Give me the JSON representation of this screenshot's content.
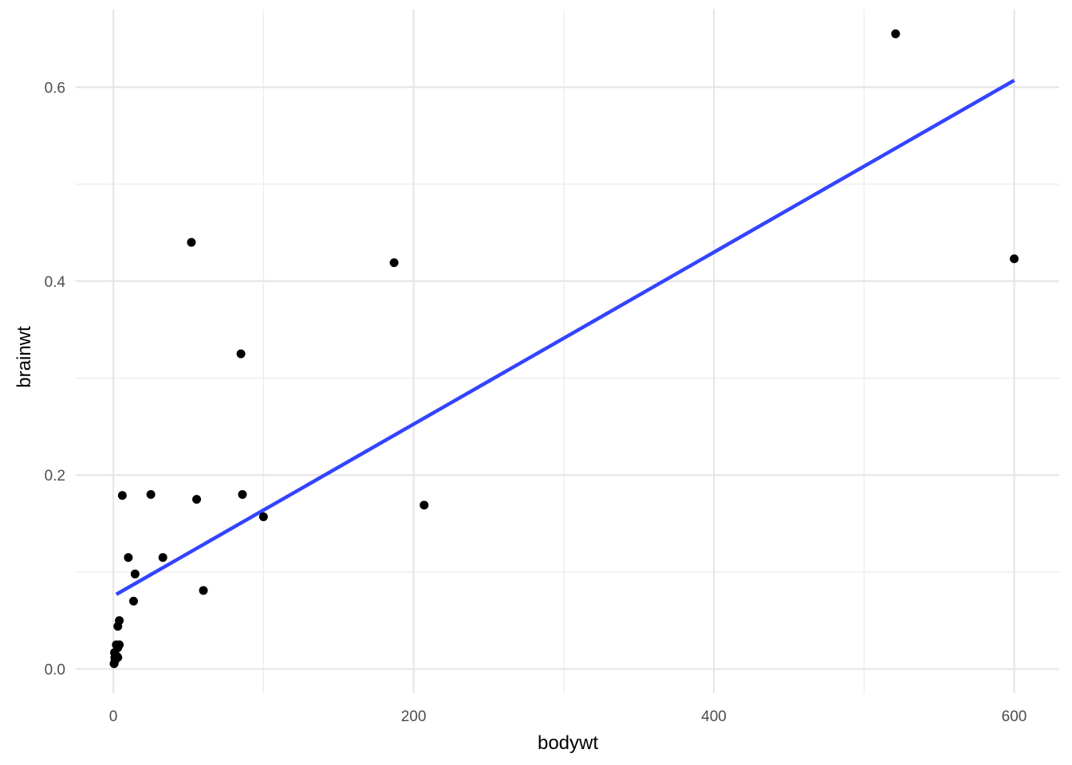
{
  "chart_data": {
    "type": "scatter",
    "title": "",
    "xlabel": "bodywt",
    "ylabel": "brainwt",
    "xlim": [
      -25,
      630
    ],
    "ylim": [
      -0.025,
      0.68
    ],
    "x_ticks": [
      0,
      200,
      400,
      600
    ],
    "x_tick_labels": [
      "0",
      "200",
      "400",
      "600"
    ],
    "y_ticks": [
      0.0,
      0.2,
      0.4,
      0.6
    ],
    "y_tick_labels": [
      "0.0",
      "0.2",
      "0.4",
      "0.6"
    ],
    "x_minor": [
      100,
      300,
      500
    ],
    "y_minor": [
      0.1,
      0.3,
      0.5
    ],
    "grid": true,
    "point_color": "#000000",
    "fit_line_color": "#3344ff",
    "points": [
      {
        "x": 0.5,
        "y": 0.0055
      },
      {
        "x": 1.0,
        "y": 0.012
      },
      {
        "x": 0.8,
        "y": 0.017
      },
      {
        "x": 1.2,
        "y": 0.009
      },
      {
        "x": 2.0,
        "y": 0.011
      },
      {
        "x": 2.5,
        "y": 0.013
      },
      {
        "x": 3.0,
        "y": 0.012
      },
      {
        "x": 2.0,
        "y": 0.025
      },
      {
        "x": 3.0,
        "y": 0.022
      },
      {
        "x": 4.0,
        "y": 0.025
      },
      {
        "x": 3.0,
        "y": 0.044
      },
      {
        "x": 4.0,
        "y": 0.05
      },
      {
        "x": 6.0,
        "y": 0.179
      },
      {
        "x": 10.0,
        "y": 0.115
      },
      {
        "x": 13.5,
        "y": 0.07
      },
      {
        "x": 14.5,
        "y": 0.098
      },
      {
        "x": 25.0,
        "y": 0.18
      },
      {
        "x": 33.0,
        "y": 0.115
      },
      {
        "x": 52.0,
        "y": 0.44
      },
      {
        "x": 55.5,
        "y": 0.175
      },
      {
        "x": 60.0,
        "y": 0.081
      },
      {
        "x": 85.0,
        "y": 0.325
      },
      {
        "x": 86.0,
        "y": 0.18
      },
      {
        "x": 100.0,
        "y": 0.157
      },
      {
        "x": 187.0,
        "y": 0.419
      },
      {
        "x": 207.0,
        "y": 0.169
      },
      {
        "x": 521.0,
        "y": 0.655
      },
      {
        "x": 600.0,
        "y": 0.423
      }
    ],
    "fit_line": {
      "x": [
        2,
        600
      ],
      "y": [
        0.077,
        0.607
      ]
    }
  }
}
